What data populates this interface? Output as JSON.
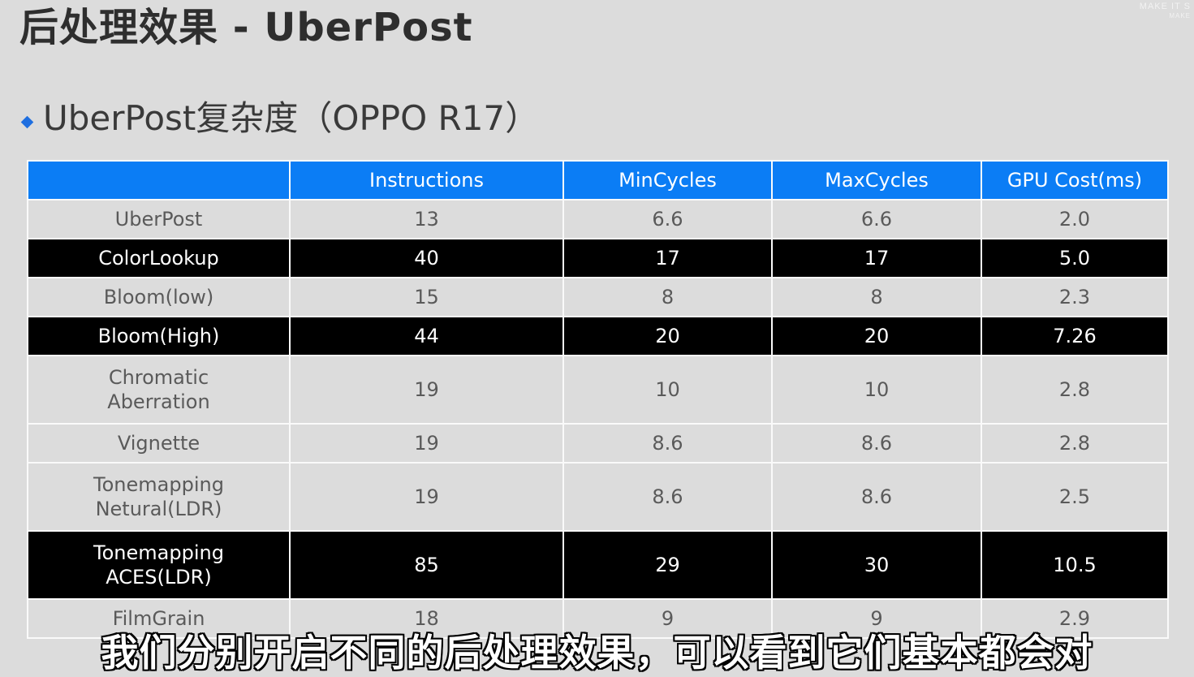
{
  "slide": {
    "title": "后处理效果 - UberPost",
    "bullet": "UberPost复杂度（OPPO R17）",
    "watermark_line1": "MAKE IT S",
    "watermark_line2": "MAKE"
  },
  "colors": {
    "header_bg": "#0b7df5",
    "dark_row_bg": "#000000",
    "light_row_bg": "#dcdcdc",
    "bullet": "#1f6fe0"
  },
  "table": {
    "headers": [
      "",
      "Instructions",
      "MinCycles",
      "MaxCycles",
      "GPU Cost(ms)"
    ],
    "rows": [
      {
        "style": "light",
        "tall": false,
        "cells": [
          "UberPost",
          "13",
          "6.6",
          "6.6",
          "2.0"
        ]
      },
      {
        "style": "dark",
        "tall": false,
        "cells": [
          "ColorLookup",
          "40",
          "17",
          "17",
          "5.0"
        ]
      },
      {
        "style": "light",
        "tall": false,
        "cells": [
          "Bloom(low)",
          "15",
          "8",
          "8",
          "2.3"
        ]
      },
      {
        "style": "dark",
        "tall": false,
        "cells": [
          "Bloom(High)",
          "44",
          "20",
          "20",
          "7.26"
        ]
      },
      {
        "style": "light",
        "tall": true,
        "cells": [
          "Chromatic\nAberration",
          "19",
          "10",
          "10",
          "2.8"
        ]
      },
      {
        "style": "light",
        "tall": false,
        "cells": [
          "Vignette",
          "19",
          "8.6",
          "8.6",
          "2.8"
        ]
      },
      {
        "style": "light",
        "tall": true,
        "cells": [
          "Tonemapping\nNetural(LDR)",
          "19",
          "8.6",
          "8.6",
          "2.5"
        ]
      },
      {
        "style": "dark",
        "tall": true,
        "cells": [
          "Tonemapping\nACES(LDR)",
          "85",
          "29",
          "30",
          "10.5"
        ]
      },
      {
        "style": "light",
        "tall": false,
        "cells": [
          "FilmGrain",
          "18",
          "9",
          "9",
          "2.9"
        ]
      }
    ]
  },
  "subtitle": "我们分别开启不同的后处理效果，可以看到它们基本都会对"
}
